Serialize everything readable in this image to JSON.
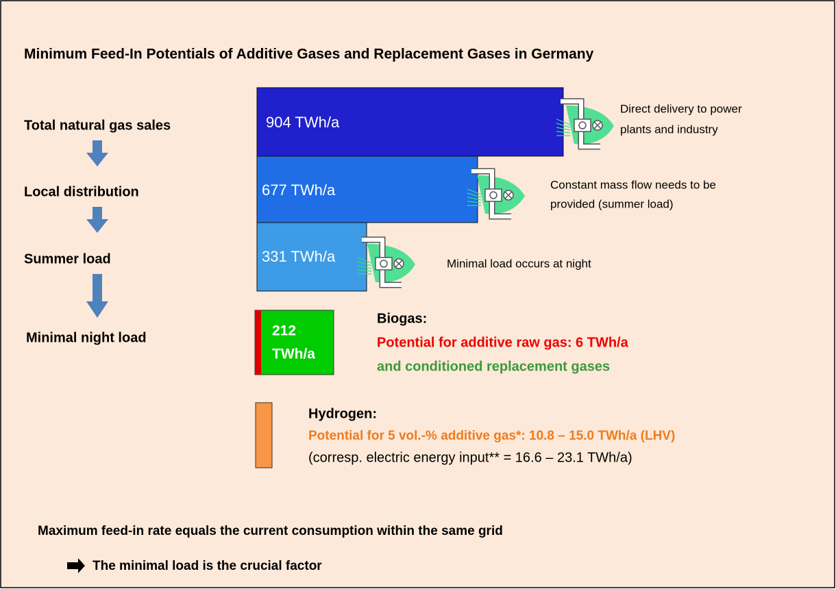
{
  "title": "Minimum Feed-In Potentials of Additive Gases and Replacement Gases in Germany",
  "stages": [
    "Total natural gas sales",
    "Local distribution",
    "Summer load",
    "Minimal night load"
  ],
  "bars": [
    {
      "label": "904 TWh/a",
      "note": [
        "Direct delivery to power",
        "plants and industry"
      ]
    },
    {
      "label": "677 TWh/a",
      "note": [
        "Constant mass flow needs to be",
        "provided (summer load)"
      ]
    },
    {
      "label": "331 TWh/a",
      "note": [
        "Minimal load occurs at night"
      ]
    }
  ],
  "biogas": {
    "box_label": [
      "212",
      "TWh/a"
    ],
    "heading": "Biogas:",
    "line1": "Potential for additive raw gas: 6 TWh/a",
    "line2": "and conditioned replacement gases"
  },
  "hydrogen": {
    "heading": "Hydrogen:",
    "line1": "Potential for 5 vol.-% additive gas*:  10.8 – 15.0 TWh/a (LHV)",
    "line2": "(corresp. electric energy input** = 16.6 – 23.1 TWh/a)"
  },
  "footer": {
    "statement": "Maximum feed-in rate equals the current consumption within the same grid",
    "conclusion": "The minimal load is the crucial factor"
  }
}
